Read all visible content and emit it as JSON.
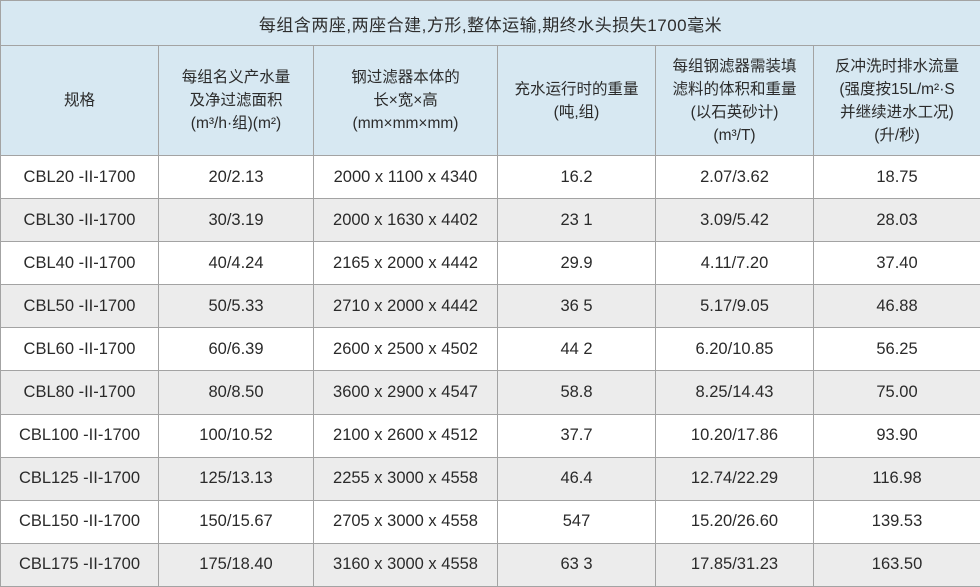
{
  "title": "每组含两座,两座合建,方形,整体运输,期终水头损失1700毫米",
  "columns": [
    "规格",
    "每组名义产水量\n及净过滤面积\n(m³/h·组)(m²)",
    "钢过滤器本体的\n长×宽×高\n(mm×mm×mm)",
    "充水运行时的重量\n(吨,组)",
    "每组钢滤器需装填\n滤料的体积和重量\n(以石英砂计)\n(m³/T)",
    "反冲洗时排水流量\n(强度按15L/m²·S\n并继续进水工况)\n(升/秒)"
  ],
  "rows": [
    [
      "CBL20 -II-1700",
      "20/2.13",
      "2000 x 1100 x 4340",
      "16.2",
      "2.07/3.62",
      "18.75"
    ],
    [
      "CBL30 -II-1700",
      "30/3.19",
      "2000 x 1630 x 4402",
      "23 1",
      "3.09/5.42",
      "28.03"
    ],
    [
      "CBL40 -II-1700",
      "40/4.24",
      "2165 x 2000 x 4442",
      "29.9",
      "4.11/7.20",
      "37.40"
    ],
    [
      "CBL50 -II-1700",
      "50/5.33",
      "2710 x 2000 x 4442",
      "36 5",
      "5.17/9.05",
      "46.88"
    ],
    [
      "CBL60 -II-1700",
      "60/6.39",
      "2600 x 2500 x 4502",
      "44 2",
      "6.20/10.85",
      "56.25"
    ],
    [
      "CBL80 -II-1700",
      "80/8.50",
      "3600 x 2900 x 4547",
      "58.8",
      "8.25/14.43",
      "75.00"
    ],
    [
      "CBL100 -II-1700",
      "100/10.52",
      "2100 x 2600 x 4512",
      "37.7",
      "10.20/17.86",
      "93.90"
    ],
    [
      "CBL125 -II-1700",
      "125/13.13",
      "2255 x 3000 x 4558",
      "46.4",
      "12.74/22.29",
      "116.98"
    ],
    [
      "CBL150 -II-1700",
      "150/15.67",
      "2705 x 3000 x 4558",
      "547",
      "15.20/26.60",
      "139.53"
    ],
    [
      "CBL175 -II-1700",
      "175/18.40",
      "3160 x 3000 x 4558",
      "63 3",
      "17.85/31.23",
      "163.50"
    ]
  ],
  "colors": {
    "header_bg": "#d7e8f2",
    "stripe_bg": "#ececec",
    "row_bg": "#ffffff",
    "border": "#a3a3a3",
    "text": "#2a2a2a"
  }
}
